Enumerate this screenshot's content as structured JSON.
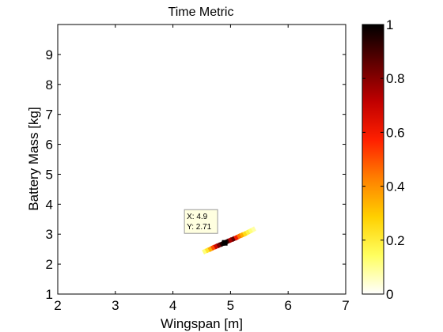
{
  "chart_data": {
    "type": "heatmap",
    "title": "Time Metric",
    "xlabel": "Wingspan [m]",
    "ylabel": "Battery Mass [kg]",
    "xlim": [
      2,
      7
    ],
    "ylim": [
      1,
      10
    ],
    "xticks": [
      "2",
      "3",
      "4",
      "5",
      "6",
      "7"
    ],
    "yticks": [
      "1",
      "2",
      "3",
      "4",
      "5",
      "6",
      "7",
      "8",
      "9"
    ],
    "grid": false,
    "colormap": "hot (reversed)",
    "colorbar": {
      "range": [
        0,
        1
      ],
      "ticks": [
        "0",
        "0.2",
        "0.4",
        "0.6",
        "0.8",
        "1"
      ],
      "stops": [
        "#ffffff",
        "#ffff60",
        "#ffd000",
        "#ff8000",
        "#ff2000",
        "#c00000",
        "#600000",
        "#000000"
      ]
    },
    "cells": [
      {
        "x": 4.55,
        "y": 2.42,
        "v": 0.12
      },
      {
        "x": 4.6,
        "y": 2.46,
        "v": 0.22
      },
      {
        "x": 4.65,
        "y": 2.5,
        "v": 0.35
      },
      {
        "x": 4.7,
        "y": 2.55,
        "v": 0.5
      },
      {
        "x": 4.75,
        "y": 2.59,
        "v": 0.68
      },
      {
        "x": 4.8,
        "y": 2.63,
        "v": 0.82
      },
      {
        "x": 4.85,
        "y": 2.67,
        "v": 0.95
      },
      {
        "x": 4.9,
        "y": 2.71,
        "v": 1.0
      },
      {
        "x": 4.95,
        "y": 2.76,
        "v": 0.9
      },
      {
        "x": 5.0,
        "y": 2.8,
        "v": 0.75
      },
      {
        "x": 5.05,
        "y": 2.84,
        "v": 0.85
      },
      {
        "x": 5.1,
        "y": 2.88,
        "v": 0.6
      },
      {
        "x": 5.15,
        "y": 2.93,
        "v": 0.45
      },
      {
        "x": 5.2,
        "y": 2.97,
        "v": 0.35
      },
      {
        "x": 5.25,
        "y": 3.01,
        "v": 0.25
      },
      {
        "x": 5.3,
        "y": 3.06,
        "v": 0.18
      },
      {
        "x": 5.35,
        "y": 3.11,
        "v": 0.12
      },
      {
        "x": 5.4,
        "y": 3.16,
        "v": 0.08
      }
    ],
    "datatip": {
      "x": 4.9,
      "y": 2.71,
      "x_text": "X: 4.9",
      "y_text": "Y: 2.71"
    }
  }
}
